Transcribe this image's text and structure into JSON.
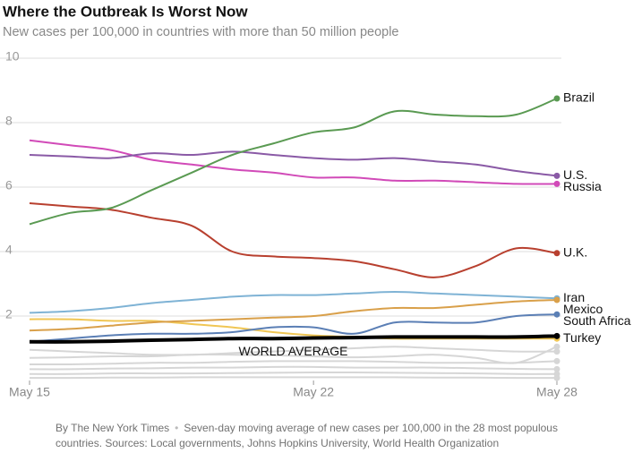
{
  "chart_data": {
    "type": "line",
    "title": "Where the Outbreak Is Worst Now",
    "subtitle": "New cases per 100,000 in countries with more than 50 million people",
    "byline": "By The New York Times",
    "note": "Seven-day moving average of new cases per 100,000 in the 28 most populous countries. Sources: Local governments, Johns Hopkins University, World Health Organization",
    "categories": [
      "May 15",
      null,
      null,
      null,
      null,
      null,
      null,
      "May 22",
      null,
      null,
      null,
      null,
      null,
      "May 28"
    ],
    "ylim": [
      0,
      10
    ],
    "yticks": [
      2,
      4,
      6,
      8,
      10
    ],
    "grid": true,
    "series": [
      {
        "color": "#d6d6d6",
        "values": [
          0.95,
          0.9,
          0.85,
          0.8,
          0.8,
          0.85,
          0.9,
          0.95,
          1.0,
          1.05,
          1.0,
          0.95,
          0.9,
          0.9
        ]
      },
      {
        "color": "#d6d6d6",
        "values": [
          0.7,
          0.72,
          0.75,
          0.75,
          0.8,
          0.8,
          0.78,
          0.75,
          0.72,
          0.75,
          0.8,
          0.7,
          0.55,
          1.05
        ]
      },
      {
        "color": "#d6d6d6",
        "values": [
          0.5,
          0.5,
          0.52,
          0.55,
          0.55,
          0.58,
          0.6,
          0.6,
          0.6,
          0.58,
          0.55,
          0.55,
          0.55,
          0.6
        ]
      },
      {
        "color": "#d6d6d6",
        "values": [
          0.35,
          0.35,
          0.37,
          0.38,
          0.4,
          0.4,
          0.42,
          0.42,
          0.4,
          0.4,
          0.4,
          0.38,
          0.36,
          0.35
        ]
      },
      {
        "color": "#d6d6d6",
        "values": [
          0.2,
          0.2,
          0.22,
          0.22,
          0.22,
          0.23,
          0.24,
          0.25,
          0.25,
          0.24,
          0.23,
          0.22,
          0.2,
          0.2
        ]
      },
      {
        "color": "#d6d6d6",
        "values": [
          0.08,
          0.08,
          0.09,
          0.09,
          0.1,
          0.1,
          0.1,
          0.1,
          0.1,
          0.1,
          0.09,
          0.09,
          0.08,
          0.08
        ]
      },
      {
        "name": "Turkey",
        "color": "#f0c654",
        "values": [
          1.9,
          1.9,
          1.85,
          1.85,
          1.75,
          1.65,
          1.5,
          1.4,
          1.35,
          1.3,
          1.3,
          1.3,
          1.3,
          1.3
        ]
      },
      {
        "name": "Iran",
        "color": "#7fb3d5",
        "values": [
          2.1,
          2.15,
          2.25,
          2.4,
          2.5,
          2.6,
          2.65,
          2.65,
          2.7,
          2.75,
          2.7,
          2.65,
          2.6,
          2.55
        ]
      },
      {
        "name": "Mexico",
        "color": "#d9a04a",
        "values": [
          1.55,
          1.6,
          1.7,
          1.8,
          1.85,
          1.9,
          1.95,
          2.0,
          2.15,
          2.25,
          2.25,
          2.35,
          2.45,
          2.5
        ]
      },
      {
        "name": "South Africa",
        "color": "#5b7fb5",
        "values": [
          1.2,
          1.3,
          1.4,
          1.45,
          1.45,
          1.5,
          1.65,
          1.65,
          1.45,
          1.8,
          1.8,
          1.8,
          2.0,
          2.05
        ]
      },
      {
        "name": "WORLD AVERAGE",
        "color": "#000000",
        "values": [
          1.2,
          1.2,
          1.22,
          1.25,
          1.27,
          1.3,
          1.3,
          1.32,
          1.33,
          1.35,
          1.35,
          1.35,
          1.35,
          1.38
        ]
      },
      {
        "name": "U.K.",
        "color": "#b8402f",
        "values": [
          5.5,
          5.4,
          5.3,
          5.05,
          4.8,
          4.0,
          3.85,
          3.8,
          3.7,
          3.45,
          3.2,
          3.55,
          4.1,
          3.95
        ]
      },
      {
        "name": "Russia",
        "color": "#d14ab8",
        "values": [
          7.45,
          7.3,
          7.15,
          6.85,
          6.7,
          6.55,
          6.45,
          6.3,
          6.3,
          6.2,
          6.2,
          6.15,
          6.1,
          6.1
        ]
      },
      {
        "name": "U.S.",
        "color": "#8a5aa6",
        "values": [
          7.0,
          6.95,
          6.9,
          7.05,
          7.0,
          7.1,
          7.0,
          6.9,
          6.85,
          6.9,
          6.8,
          6.7,
          6.5,
          6.35
        ]
      },
      {
        "name": "Brazil",
        "color": "#5a9a52",
        "values": [
          4.85,
          5.2,
          5.35,
          5.9,
          6.45,
          7.0,
          7.35,
          7.7,
          7.85,
          8.35,
          8.25,
          8.2,
          8.25,
          8.75
        ]
      }
    ]
  }
}
